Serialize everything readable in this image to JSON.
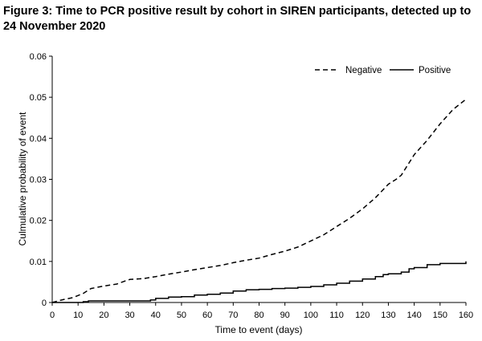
{
  "figure": {
    "title": "Figure 3: Time to PCR positive result by cohort in SIREN participants, detected up to 24 November 2020"
  },
  "chart_data": {
    "type": "line",
    "xlabel": "Time to event (days)",
    "ylabel": "Culmulative probability of event",
    "xlim": [
      0,
      160
    ],
    "ylim": [
      0,
      0.06
    ],
    "xticks": [
      0,
      10,
      20,
      30,
      40,
      50,
      60,
      70,
      80,
      90,
      100,
      110,
      120,
      130,
      140,
      150,
      160
    ],
    "yticks": [
      0,
      0.01,
      0.02,
      0.03,
      0.04,
      0.05,
      0.06
    ],
    "ytick_labels": [
      "0",
      "0.01",
      "0.02",
      "0.03",
      "0.04",
      "0.05",
      "0.06"
    ],
    "grid": false,
    "legend_position": "top-right",
    "series": [
      {
        "name": "Negative",
        "style": "dashed",
        "color": "#000000",
        "x": [
          0,
          3,
          5,
          8,
          10,
          12,
          14,
          15,
          20,
          25,
          28,
          30,
          35,
          40,
          45,
          50,
          55,
          60,
          65,
          70,
          75,
          80,
          85,
          90,
          95,
          100,
          105,
          110,
          115,
          120,
          125,
          130,
          133,
          135,
          138,
          140,
          145,
          150,
          155,
          160
        ],
        "values": [
          0,
          0.0005,
          0.0008,
          0.0012,
          0.0017,
          0.0022,
          0.003,
          0.0034,
          0.004,
          0.0045,
          0.0052,
          0.0056,
          0.0058,
          0.0063,
          0.0069,
          0.0074,
          0.008,
          0.0085,
          0.009,
          0.0097,
          0.0103,
          0.0108,
          0.0117,
          0.0125,
          0.0135,
          0.015,
          0.0165,
          0.0185,
          0.0205,
          0.0228,
          0.0255,
          0.0288,
          0.03,
          0.031,
          0.034,
          0.036,
          0.0395,
          0.0435,
          0.047,
          0.0495
        ]
      },
      {
        "name": "Positive",
        "style": "solid",
        "color": "#000000",
        "x": [
          0,
          5,
          10,
          12,
          14,
          20,
          30,
          35,
          38,
          40,
          45,
          50,
          55,
          60,
          65,
          70,
          75,
          80,
          85,
          90,
          95,
          100,
          105,
          110,
          115,
          120,
          125,
          128,
          130,
          135,
          138,
          140,
          145,
          150,
          155,
          160
        ],
        "values": [
          0,
          0,
          0,
          0.0002,
          0.0004,
          0.0004,
          0.0004,
          0.0004,
          0.0006,
          0.001,
          0.0013,
          0.0014,
          0.0018,
          0.002,
          0.0023,
          0.0028,
          0.0031,
          0.0032,
          0.0034,
          0.0035,
          0.0037,
          0.0039,
          0.0043,
          0.0047,
          0.0052,
          0.0057,
          0.0063,
          0.0068,
          0.007,
          0.0074,
          0.0082,
          0.0085,
          0.0092,
          0.0095,
          0.0095,
          0.01
        ]
      }
    ]
  }
}
